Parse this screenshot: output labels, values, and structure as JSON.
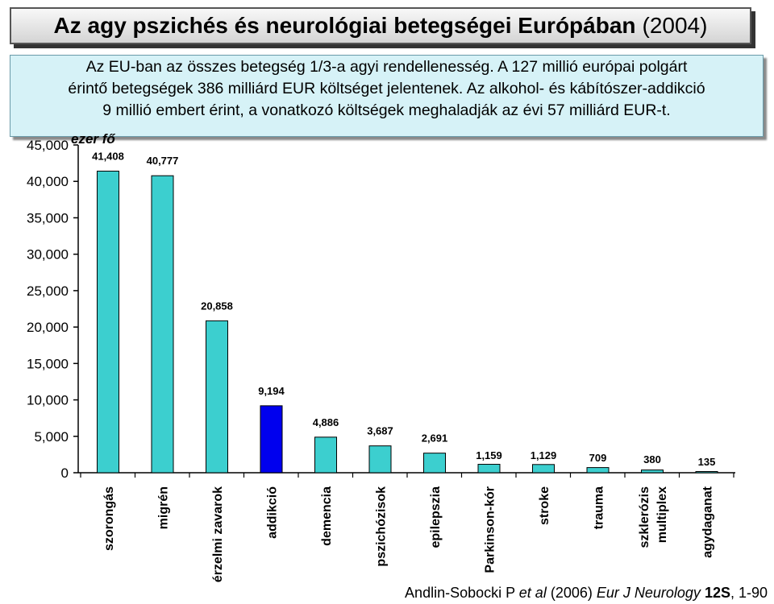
{
  "header": {
    "title_main": "Az agy pszichés és neurológiai betegségei Európában",
    "title_year": "(2004)"
  },
  "info": {
    "lines": [
      "Az EU-ban az összes betegség 1/3-a agyi rendellenesség. A 127 millió európai polgárt",
      "érintő betegségek 386 milliárd EUR költséget jelentenek. Az alkohol- és kábítószer-addikció",
      "9 millió embert érint, a vonatkozó költségek meghaladják az évi 57 milliárd EUR-t."
    ]
  },
  "chart_data": {
    "type": "bar",
    "ylabel": "ezer fő",
    "ylim": [
      0,
      45000
    ],
    "yticks": [
      0,
      5000,
      10000,
      15000,
      20000,
      25000,
      30000,
      35000,
      40000,
      45000
    ],
    "ytick_labels": [
      "0",
      "5,000",
      "10,000",
      "15,000",
      "20,000",
      "25,000",
      "30,000",
      "35,000",
      "40,000",
      "45,000"
    ],
    "categories": [
      "szorongás",
      "migrén",
      "érzelmi zavarok",
      "addikció",
      "demencia",
      "pszichózisok",
      "epilepszia",
      "Parkinson-kór",
      "stroke",
      "trauma",
      "szklerózis multiplex",
      "agydaganat"
    ],
    "category_lines": [
      [
        "szorongás"
      ],
      [
        "migrén"
      ],
      [
        "érzelmi zavarok"
      ],
      [
        "addikció"
      ],
      [
        "demencia"
      ],
      [
        "pszichózisok"
      ],
      [
        "epilepszia"
      ],
      [
        "Parkinson-kór"
      ],
      [
        "stroke"
      ],
      [
        "trauma"
      ],
      [
        "szklerózis",
        "multiplex"
      ],
      [
        "agydaganat"
      ]
    ],
    "values": [
      41408,
      40777,
      20858,
      9194,
      4886,
      3687,
      2691,
      1159,
      1129,
      709,
      380,
      135
    ],
    "value_labels": [
      "41,408",
      "40,777",
      "20,858",
      "9,194",
      "4,886",
      "3,687",
      "2,691",
      "1,159",
      "1,129",
      "709",
      "380",
      "135"
    ],
    "highlight_index": 3,
    "colors": {
      "bar": "#3ccfcf",
      "highlight": "#0000ee",
      "bar_outline": "#000000"
    },
    "grid": false
  },
  "citation": {
    "authors": "Andlin-Sobocki P ",
    "etal": "et al",
    "year": " (2006) ",
    "journal": "Eur J Neurology",
    "volume": " 12S",
    "pages": ", 1-90"
  }
}
